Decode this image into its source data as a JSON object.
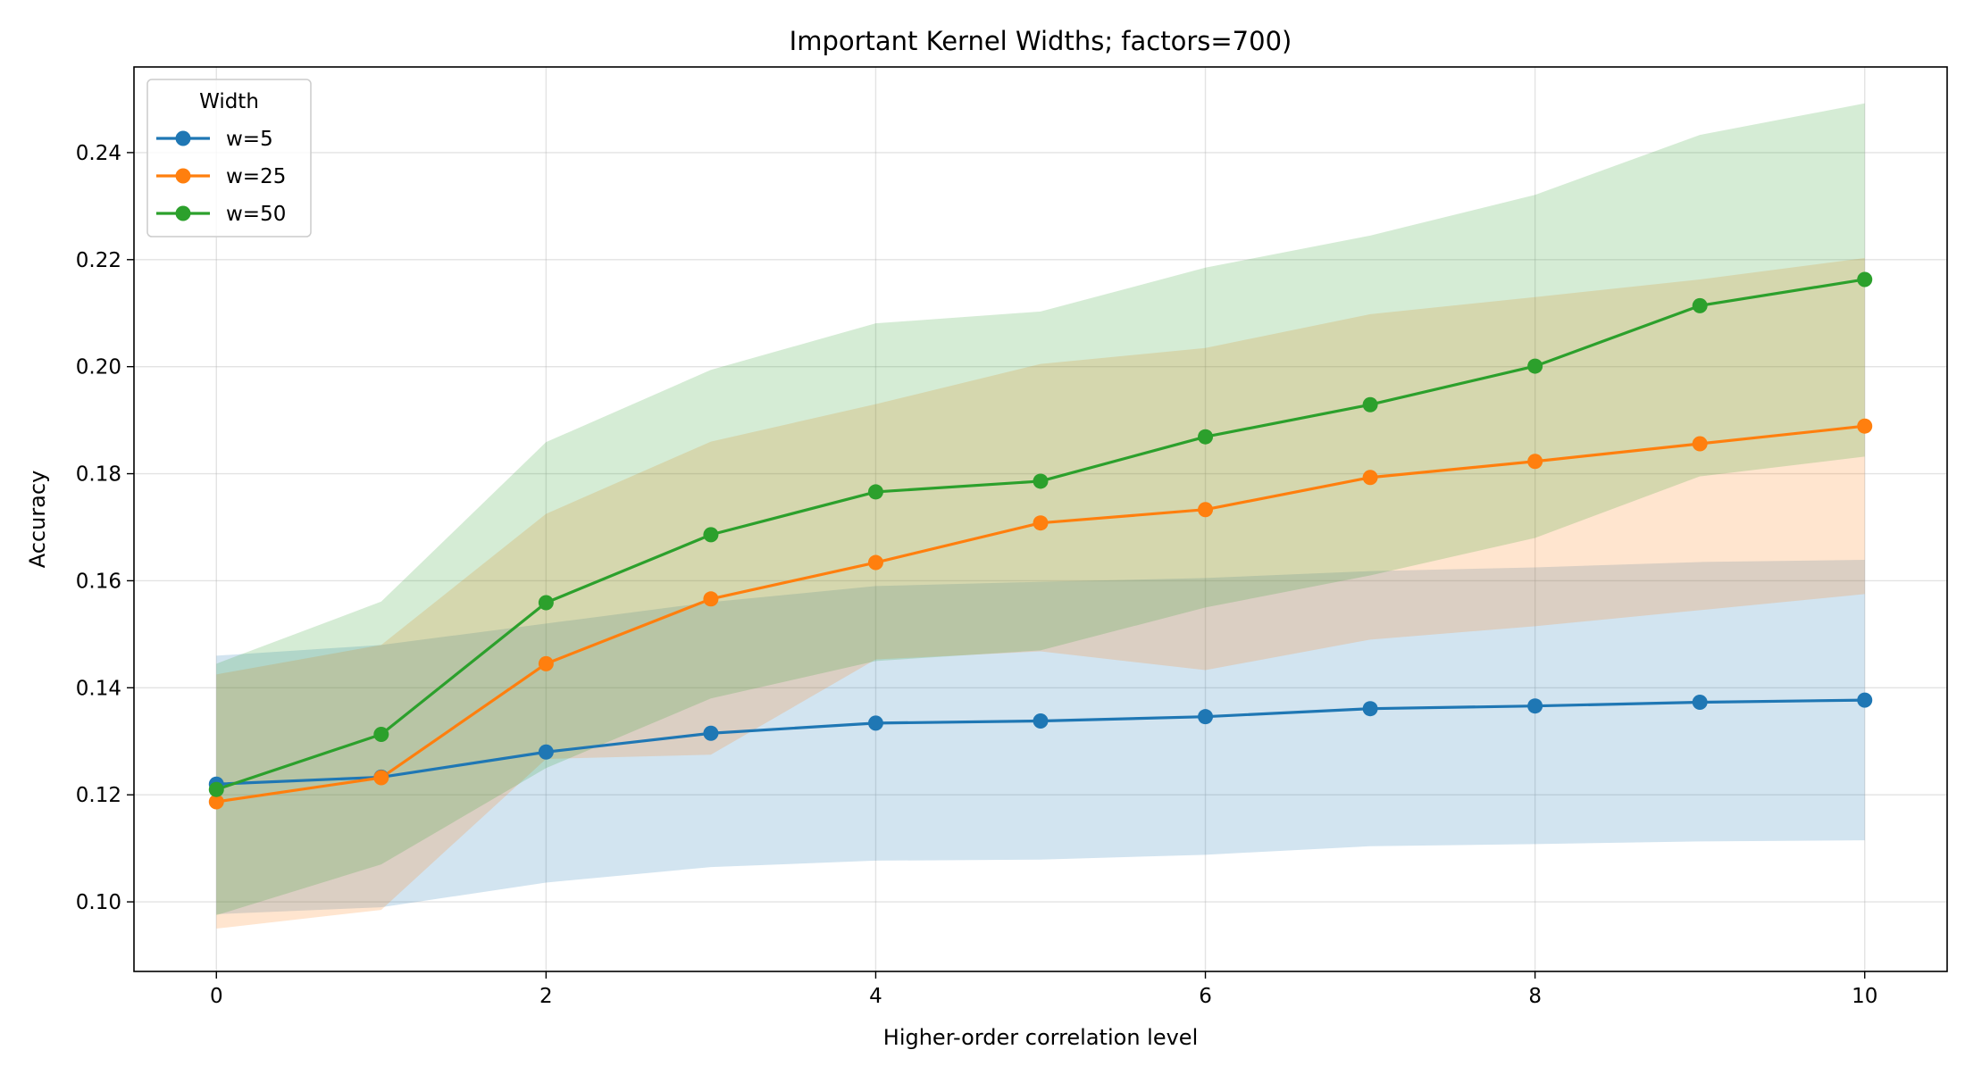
{
  "chart_data": {
    "type": "line",
    "title": "Important Kernel Widths; factors=700)",
    "xlabel": "Higher-order correlation level",
    "ylabel": "Accuracy",
    "x": [
      0,
      1,
      2,
      3,
      4,
      5,
      6,
      7,
      8,
      9,
      10
    ],
    "xlim": [
      -0.5,
      10.5
    ],
    "ylim": [
      0.087,
      0.256
    ],
    "x_ticks": [
      "0",
      "2",
      "4",
      "6",
      "8",
      "10"
    ],
    "y_ticks": [
      "0.10",
      "0.12",
      "0.14",
      "0.16",
      "0.18",
      "0.20",
      "0.22",
      "0.24"
    ],
    "grid": true,
    "legend": {
      "title": "Width",
      "position": "top-left"
    },
    "series": [
      {
        "name": "w=5",
        "color": "#1f77b4",
        "values": [
          0.122,
          0.1233,
          0.128,
          0.1315,
          0.1334,
          0.1338,
          0.1346,
          0.1361,
          0.1366,
          0.1373,
          0.1377
        ],
        "upper": [
          0.146,
          0.148,
          0.152,
          0.156,
          0.159,
          0.1598,
          0.1605,
          0.1618,
          0.1625,
          0.1635,
          0.1639
        ],
        "lower": [
          0.0977,
          0.099,
          0.1036,
          0.1065,
          0.1077,
          0.1079,
          0.1088,
          0.1104,
          0.1108,
          0.1113,
          0.1115
        ]
      },
      {
        "name": "w=25",
        "color": "#ff7f0e",
        "values": [
          0.1187,
          0.1232,
          0.1445,
          0.1566,
          0.1634,
          0.1708,
          0.1733,
          0.1793,
          0.1823,
          0.1856,
          0.1889
        ],
        "upper": [
          0.1425,
          0.148,
          0.1725,
          0.186,
          0.193,
          0.2005,
          0.2035,
          0.2098,
          0.213,
          0.2163,
          0.2203
        ],
        "lower": [
          0.095,
          0.0985,
          0.1267,
          0.1275,
          0.1453,
          0.1468,
          0.1433,
          0.149,
          0.1515,
          0.1545,
          0.1575
        ]
      },
      {
        "name": "w=50",
        "color": "#2ca02c",
        "values": [
          0.121,
          0.1313,
          0.1559,
          0.1686,
          0.1766,
          0.1786,
          0.1869,
          0.1929,
          0.2001,
          0.2114,
          0.2163
        ],
        "upper": [
          0.1445,
          0.1561,
          0.1859,
          0.1994,
          0.2081,
          0.2103,
          0.2185,
          0.2245,
          0.2321,
          0.2433,
          0.2492
        ],
        "lower": [
          0.0975,
          0.107,
          0.125,
          0.138,
          0.145,
          0.147,
          0.155,
          0.161,
          0.168,
          0.1795,
          0.1832
        ]
      }
    ]
  }
}
